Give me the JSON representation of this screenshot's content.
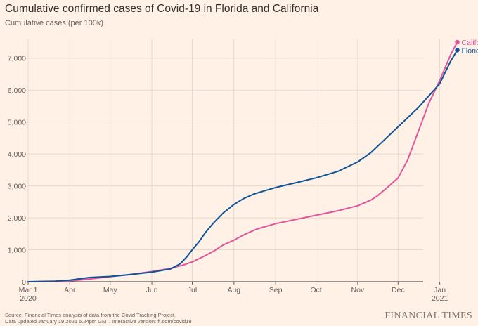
{
  "header": {
    "title": "Cumulative confirmed cases of Covid-19 in Florida and California",
    "subtitle": "Cumulative cases (per 100k)"
  },
  "footer": {
    "source": "Source: Financial Times analysis of data from the Covid Tracking Project.",
    "updated": "Data updated January 19 2021 6.24pm GMT. Interactive version: ft.com/covid19",
    "brand": "FINANCIAL TIMES"
  },
  "colors": {
    "background": "#fff1e5",
    "florida": "#0f5499",
    "california": "#e0569b",
    "grid": "#e6d9ce",
    "text": "#66605c"
  },
  "chart_data": {
    "type": "line",
    "title": "Cumulative confirmed cases of Covid-19 in Florida and California",
    "ylabel": "Cumulative cases (per 100k)",
    "xlabel": "",
    "x_units": "days since Mar 1 2020",
    "xlim": [
      0,
      325
    ],
    "ylim": [
      0,
      7500
    ],
    "y_ticks": [
      0,
      1000,
      2000,
      3000,
      4000,
      5000,
      6000,
      7000
    ],
    "y_tick_labels": [
      "0",
      "1,000",
      "2,000",
      "3,000",
      "4,000",
      "5,000",
      "6,000",
      "7,000"
    ],
    "x_ticks": [
      {
        "x": 0,
        "label": "Mar 1",
        "sub": "2020"
      },
      {
        "x": 31,
        "label": "Apr"
      },
      {
        "x": 61,
        "label": "May"
      },
      {
        "x": 92,
        "label": "Jun"
      },
      {
        "x": 122,
        "label": "Jul"
      },
      {
        "x": 153,
        "label": "Aug"
      },
      {
        "x": 184,
        "label": "Sep"
      },
      {
        "x": 214,
        "label": "Oct"
      },
      {
        "x": 245,
        "label": "Nov"
      },
      {
        "x": 275,
        "label": "Dec"
      },
      {
        "x": 306,
        "label": "Jan",
        "sub": "2021"
      }
    ],
    "grid": true,
    "legend": "end-of-line labels",
    "series": [
      {
        "name": "California",
        "color": "#e0569b",
        "x": [
          0,
          20,
          31,
          45,
          61,
          75,
          92,
          106,
          115,
          122,
          130,
          138,
          145,
          153,
          160,
          170,
          184,
          199,
          214,
          230,
          245,
          255,
          260,
          267,
          275,
          282,
          290,
          298,
          306,
          314,
          319
        ],
        "values": [
          0,
          5,
          25,
          80,
          160,
          220,
          320,
          420,
          520,
          620,
          780,
          960,
          1150,
          1300,
          1460,
          1650,
          1820,
          1950,
          2080,
          2220,
          2380,
          2560,
          2700,
          2950,
          3250,
          3800,
          4700,
          5600,
          6300,
          7100,
          7500
        ]
      },
      {
        "name": "Florida",
        "color": "#0f5499",
        "x": [
          0,
          20,
          31,
          45,
          61,
          75,
          92,
          106,
          113,
          118,
          122,
          127,
          132,
          138,
          145,
          153,
          160,
          168,
          176,
          184,
          199,
          214,
          230,
          245,
          255,
          265,
          275,
          290,
          306,
          314,
          319
        ],
        "values": [
          0,
          15,
          50,
          130,
          165,
          220,
          300,
          400,
          560,
          780,
          1000,
          1250,
          1550,
          1850,
          2150,
          2420,
          2600,
          2750,
          2850,
          2950,
          3100,
          3250,
          3450,
          3750,
          4050,
          4450,
          4850,
          5450,
          6200,
          6900,
          7250
        ]
      }
    ]
  }
}
